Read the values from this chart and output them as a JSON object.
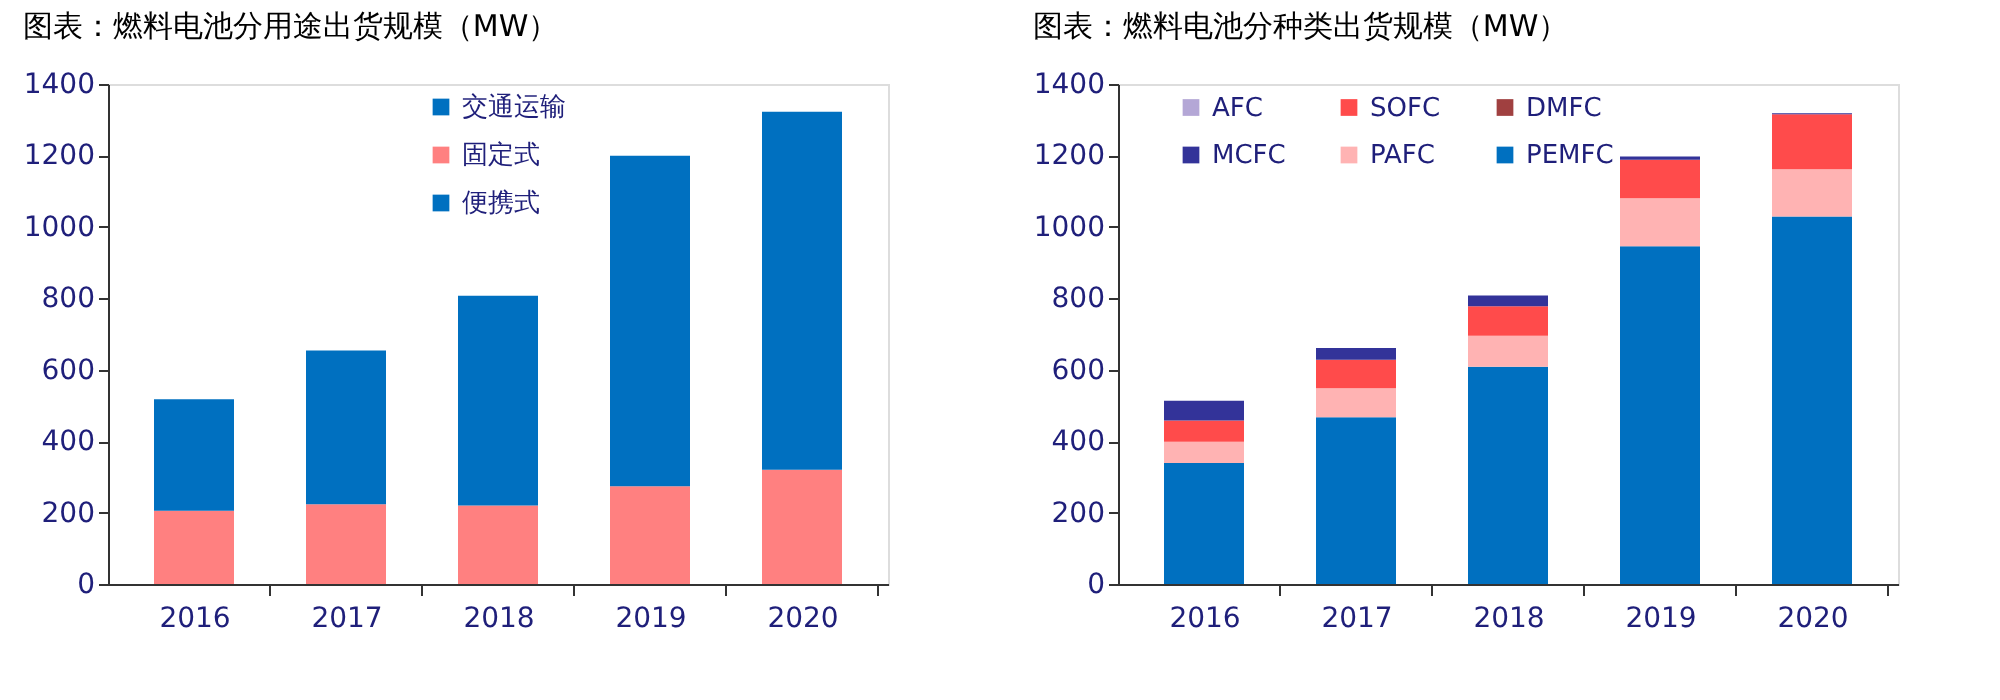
{
  "chart_data": [
    {
      "type": "bar",
      "title": "图表：燃料电池分用途出货规模（MW）",
      "categories": [
        "2016",
        "2017",
        "2018",
        "2019",
        "2020"
      ],
      "stacked": true,
      "legend": "top",
      "grid": false,
      "ylim": [
        0,
        1400
      ],
      "yticks": [
        0,
        200,
        400,
        600,
        800,
        1000,
        1200,
        1400
      ],
      "series": [
        {
          "name": "便携式",
          "color": "#0070c0",
          "values": [
            0,
            0,
            0,
            0,
            0
          ]
        },
        {
          "name": "固定式",
          "color": "#ff8080",
          "values": [
            205,
            223,
            220,
            274,
            320
          ]
        },
        {
          "name": "交通运输",
          "color": "#0070c0",
          "values": [
            312,
            431,
            587,
            925,
            1002
          ]
        }
      ]
    },
    {
      "type": "bar",
      "title": "图表：燃料电池分种类出货规模（MW）",
      "categories": [
        "2016",
        "2017",
        "2018",
        "2019",
        "2020"
      ],
      "stacked": true,
      "legend": "top",
      "grid": false,
      "ylim": [
        0,
        1400
      ],
      "yticks": [
        0,
        200,
        400,
        600,
        800,
        1000,
        1200,
        1400
      ],
      "series": [
        {
          "name": "PEMFC",
          "color": "#0070c0",
          "values": [
            339,
            467,
            608,
            946,
            1029
          ]
        },
        {
          "name": "DMFC",
          "color": "#a04040",
          "values": [
            0,
            0,
            0,
            0,
            0
          ]
        },
        {
          "name": "PAFC",
          "color": "#ffb3b3",
          "values": [
            59,
            81,
            87,
            134,
            132
          ]
        },
        {
          "name": "SOFC",
          "color": "#ff4b4b",
          "values": [
            60,
            80,
            83,
            108,
            154
          ]
        },
        {
          "name": "MCFC",
          "color": "#333399",
          "values": [
            55,
            33,
            30,
            9,
            3
          ]
        },
        {
          "name": "AFC",
          "color": "#b4a7d6",
          "values": [
            0,
            0,
            0,
            0,
            0
          ]
        }
      ]
    }
  ]
}
